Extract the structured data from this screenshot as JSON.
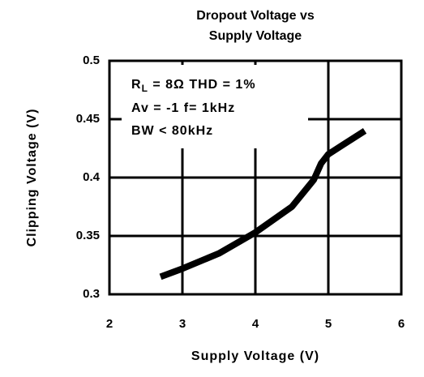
{
  "chart_data": {
    "type": "line",
    "title": [
      "Dropout Voltage vs",
      "Supply Voltage"
    ],
    "x_label": "Supply Voltage  (V)",
    "y_label": "Clipping Voltage (V)",
    "annotations": [
      "R",
      "L",
      " = 8Ω  THD = 1%",
      "Av = -1     f= 1kHz",
      "BW < 80kHz"
    ],
    "xlim": [
      2,
      6
    ],
    "xticks": [
      2,
      3,
      4,
      5,
      6
    ],
    "ylim": [
      0.3,
      0.5
    ],
    "yticks": [
      0.3,
      0.35,
      0.4,
      0.45,
      0.5
    ],
    "grid": true,
    "series": [
      {
        "color": "#000000",
        "x": [
          2.7,
          3,
          3.5,
          4,
          4.5,
          4.8,
          4.9,
          5,
          5.2,
          5.5
        ],
        "values": [
          0.315,
          0.322,
          0.335,
          0.353,
          0.375,
          0.398,
          0.412,
          0.42,
          0.428,
          0.44
        ]
      }
    ]
  }
}
